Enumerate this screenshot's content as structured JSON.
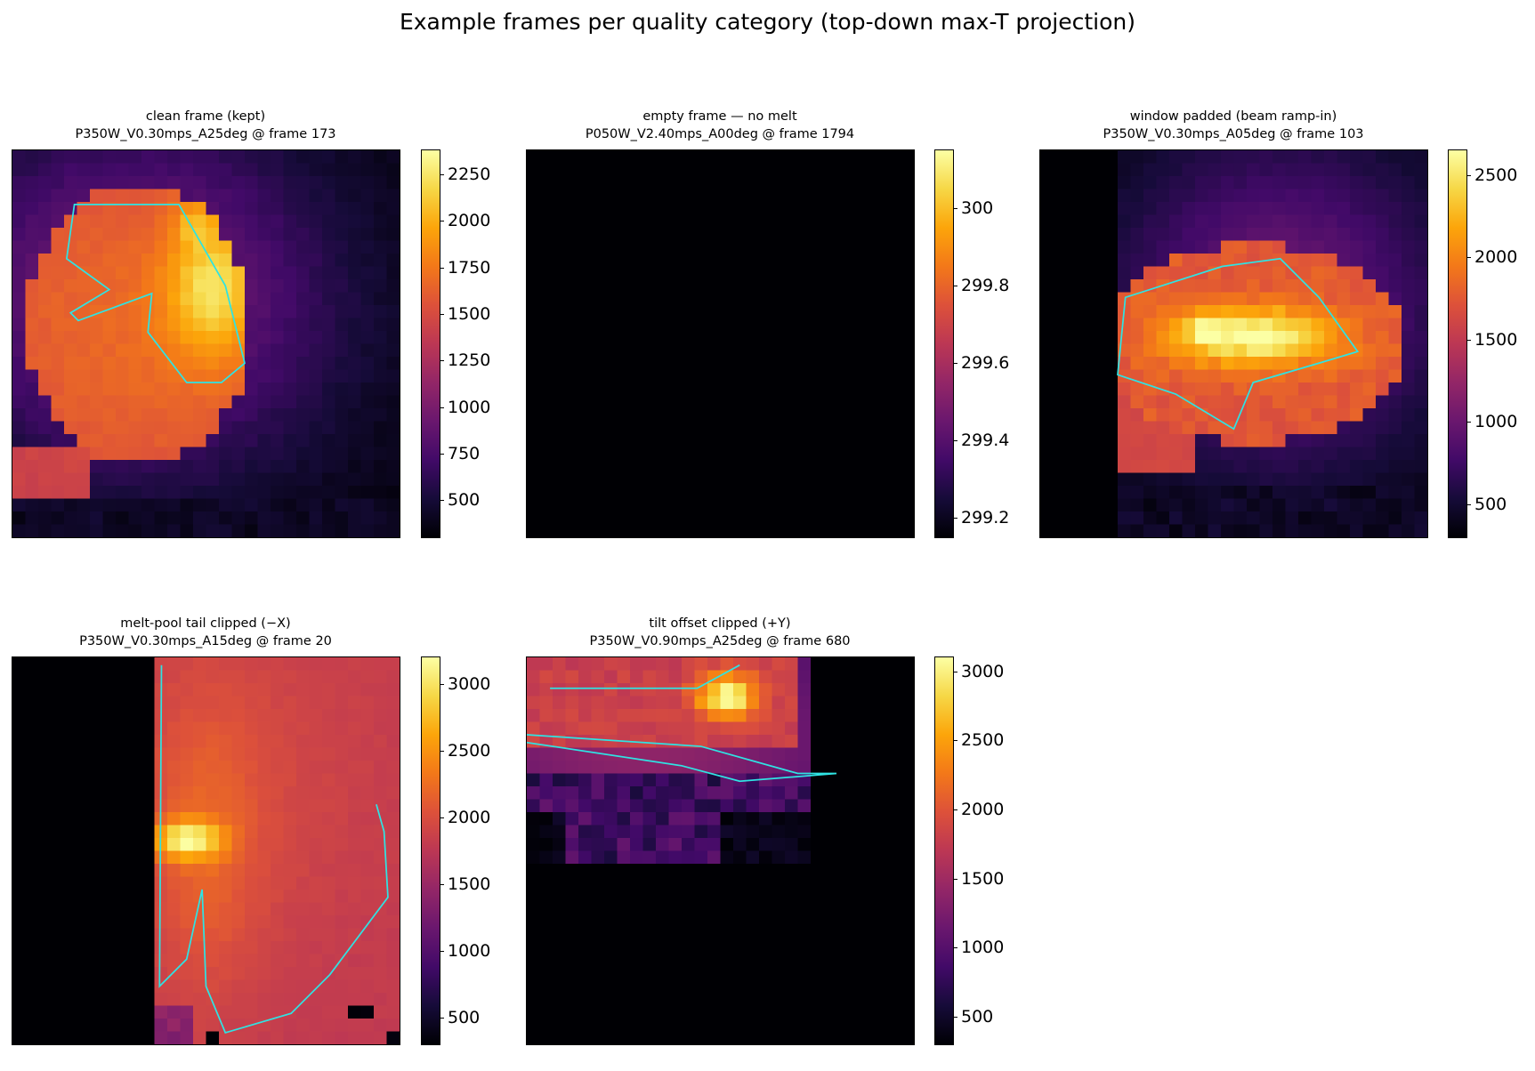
{
  "figure": {
    "title": "Example frames per quality category (top-down max-T projection)"
  },
  "colors": {
    "colormap": "inferno",
    "contour": "#2fe3e3",
    "background": "#ffffff"
  },
  "chart_data": [
    {
      "type": "heatmap",
      "title_line1": "clean frame (kept)",
      "title_line2": "P350W_V0.30mps_A25deg @ frame 173",
      "colorbar_range": [
        300,
        2380
      ],
      "colorbar_ticks": [
        500,
        750,
        1000,
        1250,
        1500,
        1750,
        2000,
        2250
      ],
      "grid_shape": [
        30,
        30
      ],
      "description": "melt pool blob (~1600-1700) in upper-left, hotspot ~2300 near top-centre, cyan contour around hot region, dark edges",
      "axes_visible": false
    },
    {
      "type": "heatmap",
      "title_line1": "empty frame — no melt",
      "title_line2": "P050W_V2.40mps_A00deg @ frame 1794",
      "colorbar_range": [
        299.15,
        300.15
      ],
      "colorbar_ticks": [
        299.2,
        299.4,
        299.6,
        299.8,
        300.0
      ],
      "grid_shape": [
        30,
        30
      ],
      "description": "uniform field at ambient temperature",
      "axes_visible": false
    },
    {
      "type": "heatmap",
      "title_line1": "window padded (beam ramp-in)",
      "title_line2": "P350W_V0.30mps_A05deg @ frame 103",
      "colorbar_range": [
        300,
        2650
      ],
      "colorbar_ticks": [
        500,
        1000,
        1500,
        2000,
        2500
      ],
      "grid_shape": [
        30,
        30
      ],
      "description": "left ~6 columns zero padded, melt pool centred with peak ~2600, cyan contour",
      "axes_visible": false
    },
    {
      "type": "heatmap",
      "title_line1": "melt-pool tail clipped (−X)",
      "title_line2": "P350W_V0.30mps_A15deg @ frame 20",
      "colorbar_range": [
        300,
        3200
      ],
      "colorbar_ticks": [
        500,
        1000,
        1500,
        2000,
        2500,
        3000
      ],
      "grid_shape": [
        30,
        30
      ],
      "description": "left ~11 columns zero, warm field ~1800-2100, hotspot ~3100 near left edge of data, cyan contour",
      "axes_visible": false
    },
    {
      "type": "heatmap",
      "title_line1": "tilt offset clipped (+Y)",
      "title_line2": "P350W_V0.90mps_A25deg @ frame 680",
      "colorbar_range": [
        300,
        3100
      ],
      "colorbar_ticks": [
        500,
        1000,
        1500,
        2000,
        2500,
        3000
      ],
      "grid_shape": [
        30,
        30
      ],
      "description": "data only in upper rows, hot band ~2000 with peak ~3000, lower region zero",
      "axes_visible": false
    }
  ]
}
